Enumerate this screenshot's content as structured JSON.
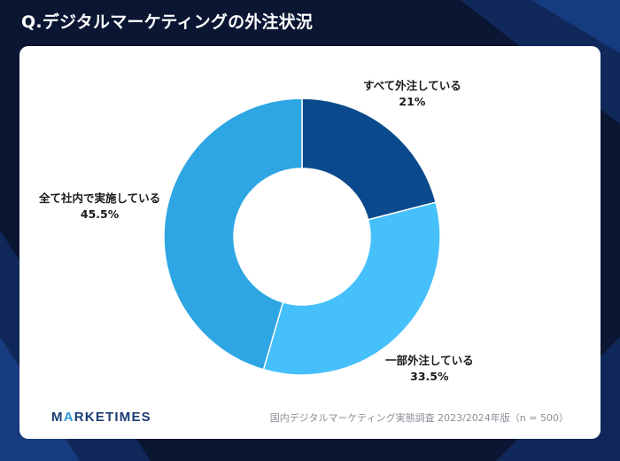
{
  "header": {
    "title": "Q.デジタルマーケティングの外注状況"
  },
  "chart_data": {
    "type": "pie",
    "donut": true,
    "title": "Q.デジタルマーケティングの外注状況",
    "slices": [
      {
        "label": "すべて外注している",
        "value": 21,
        "value_label": "21%",
        "color": "#0a4a8c"
      },
      {
        "label": "一部外注している",
        "value": 33.5,
        "value_label": "33.5%",
        "color": "#45c0fb"
      },
      {
        "label": "全て社内で実施している",
        "value": 45.5,
        "value_label": "45.5%",
        "color": "#2ea6e3"
      }
    ],
    "legend": "none"
  },
  "footer": {
    "logo_main": "MARKETIMES",
    "source": "国内デジタルマーケティング実態調査 2023/2024年版（n = 500）"
  }
}
